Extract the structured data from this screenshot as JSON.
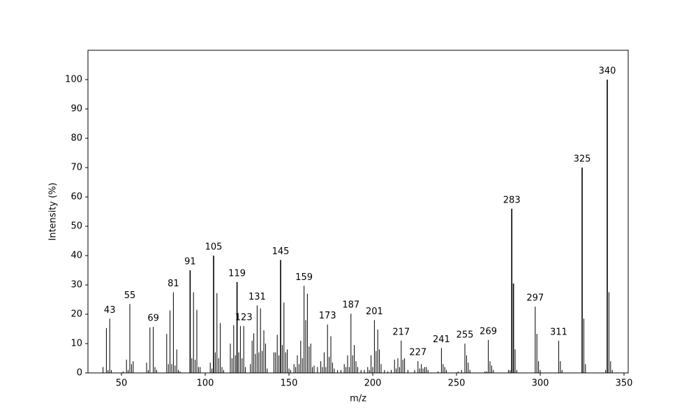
{
  "chart_data": {
    "type": "stem",
    "xlabel": "m/z",
    "ylabel": "Intensity (%)",
    "color": "#000000",
    "xlim": [
      30,
      352.5
    ],
    "ylim": [
      0,
      110
    ],
    "xticks": [
      50,
      100,
      150,
      200,
      250,
      300,
      350
    ],
    "yticks": [
      0,
      10,
      20,
      30,
      40,
      50,
      60,
      70,
      80,
      90,
      100
    ],
    "x": [
      39,
      41,
      42,
      43,
      44,
      51,
      53,
      54,
      55,
      56,
      57,
      65,
      66,
      67,
      69,
      70,
      71,
      77,
      78,
      79,
      80,
      81,
      82,
      83,
      84,
      85,
      91,
      92,
      93,
      94,
      95,
      96,
      97,
      103,
      104,
      105,
      106,
      107,
      108,
      109,
      110,
      111,
      115,
      116,
      117,
      118,
      119,
      120,
      121,
      122,
      123,
      124,
      127,
      128,
      129,
      130,
      131,
      132,
      133,
      134,
      135,
      136,
      137,
      141,
      142,
      143,
      144,
      145,
      146,
      147,
      148,
      149,
      150,
      151,
      153,
      154,
      155,
      156,
      157,
      158,
      159,
      160,
      161,
      162,
      163,
      164,
      165,
      167,
      169,
      170,
      171,
      172,
      173,
      174,
      175,
      176,
      177,
      179,
      181,
      183,
      184,
      185,
      186,
      187,
      188,
      189,
      190,
      191,
      193,
      195,
      197,
      198,
      199,
      200,
      201,
      202,
      203,
      204,
      205,
      207,
      209,
      211,
      213,
      214,
      215,
      216,
      217,
      218,
      219,
      221,
      225,
      227,
      228,
      229,
      230,
      231,
      232,
      233,
      239,
      241,
      242,
      243,
      244,
      251,
      253,
      255,
      256,
      257,
      258,
      267,
      268,
      269,
      270,
      271,
      272,
      281,
      282,
      283,
      284,
      285,
      286,
      297,
      298,
      299,
      300,
      311,
      312,
      313,
      325,
      326,
      327,
      339,
      340,
      341,
      342,
      343
    ],
    "values": [
      2,
      15.3,
      1,
      18.5,
      1,
      0.5,
      4.5,
      1,
      23.5,
      3,
      4,
      3.5,
      1,
      15.5,
      15.7,
      2,
      1,
      13.3,
      3,
      21.3,
      3,
      27.5,
      2.5,
      8,
      1,
      0.5,
      35,
      5,
      27.5,
      4.5,
      21.5,
      2,
      2,
      3.5,
      1.5,
      40,
      7,
      27.2,
      5,
      17,
      2,
      1,
      10,
      5,
      16.3,
      6,
      31,
      7,
      16,
      5,
      16,
      2,
      3,
      11,
      13.5,
      6.5,
      23,
      7,
      22,
      7.5,
      14.5,
      10,
      1.5,
      7,
      7,
      13,
      6,
      38.5,
      9.5,
      24,
      7,
      8,
      1.5,
      1,
      3,
      2,
      6,
      3,
      11,
      5,
      29.7,
      18,
      27,
      9,
      10,
      2,
      2.5,
      2,
      4,
      2,
      7,
      2,
      16.5,
      5.5,
      12.5,
      3.5,
      1.5,
      1,
      1,
      3,
      2,
      6,
      2,
      20.2,
      6,
      9.5,
      4,
      2,
      1,
      1,
      2,
      1,
      6,
      2,
      18,
      7.5,
      14.8,
      8,
      3,
      1,
      0.5,
      1,
      4.5,
      1.5,
      5,
      2,
      11,
      4.5,
      5,
      1,
      1,
      4,
      1.5,
      3,
      1.5,
      2,
      2,
      1,
      0.5,
      8.5,
      3,
      2,
      1,
      0.5,
      1,
      10,
      6,
      3.5,
      1,
      0.5,
      0.5,
      11.2,
      4,
      2.5,
      1,
      1,
      1,
      56,
      30.5,
      8,
      1,
      22.6,
      13.3,
      4,
      1,
      11,
      4,
      1,
      70,
      18.5,
      3,
      1,
      100,
      27.5,
      4,
      1
    ],
    "annotated_peaks": [
      43,
      55,
      69,
      81,
      91,
      105,
      119,
      123,
      131,
      145,
      159,
      173,
      187,
      201,
      217,
      227,
      241,
      255,
      269,
      283,
      297,
      311,
      325,
      340
    ]
  }
}
